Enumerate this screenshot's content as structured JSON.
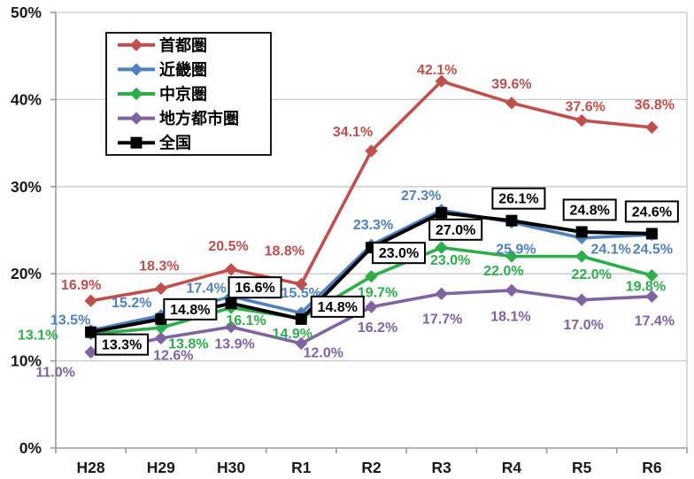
{
  "chart_data": {
    "type": "line",
    "x": [
      "H28",
      "H29",
      "H30",
      "R1",
      "R2",
      "R3",
      "R4",
      "R5",
      "R6"
    ],
    "ylim": [
      0,
      50
    ],
    "yticks": {
      "values": [
        0,
        10,
        20,
        30,
        40,
        50
      ],
      "labels": [
        "0%",
        "10%",
        "20%",
        "30%",
        "40%",
        "50%"
      ]
    },
    "grid": true,
    "legend_position": "top-left-inside",
    "colors": {
      "gridline": "#c9c9c9",
      "axis": "#9b9b9b",
      "legend_border": "#000000",
      "legend_bg": "#ffffff",
      "label_box_bg": "#ffffff",
      "label_box_border": "#000000"
    },
    "series": [
      {
        "name": "首都圏",
        "slug": "shutoken",
        "color": "#C0504D",
        "marker": "diamond",
        "boxed_labels": false,
        "values": [
          16.9,
          18.3,
          20.5,
          18.8,
          34.1,
          42.1,
          39.6,
          37.6,
          36.8
        ],
        "label_offsets": [
          [
            -11,
            -18
          ],
          [
            -2,
            -26
          ],
          [
            -3,
            -27
          ],
          [
            -19,
            -38
          ],
          [
            -21,
            -22
          ],
          [
            -5,
            -13
          ],
          [
            0,
            -22
          ],
          [
            4,
            -16
          ],
          [
            3,
            -26
          ]
        ]
      },
      {
        "name": "近畿圏",
        "slug": "kinkiken",
        "color": "#4F81BD",
        "marker": "diamond",
        "boxed_labels": false,
        "values": [
          13.5,
          15.2,
          17.4,
          15.5,
          23.3,
          27.3,
          25.9,
          24.1,
          24.5
        ],
        "label_offsets": [
          [
            -23,
            -12
          ],
          [
            -33,
            -15
          ],
          [
            -28,
            -10
          ],
          [
            0,
            -23
          ],
          [
            2,
            -23
          ],
          [
            -23,
            -17
          ],
          [
            5,
            30
          ],
          [
            33,
            12
          ],
          [
            1,
            16
          ]
        ]
      },
      {
        "name": "中京圏",
        "slug": "chukyoken",
        "color": "#2EAD4B",
        "marker": "diamond",
        "boxed_labels": false,
        "values": [
          13.1,
          13.8,
          16.1,
          14.9,
          19.7,
          23.0,
          22.0,
          22.0,
          19.8
        ],
        "label_offsets": [
          [
            -60,
            1
          ],
          [
            31,
            18
          ],
          [
            17,
            14
          ],
          [
            -10,
            17
          ],
          [
            7,
            18
          ],
          [
            10,
            14
          ],
          [
            -9,
            16
          ],
          [
            11,
            20
          ],
          [
            -7,
            12
          ]
        ]
      },
      {
        "name": "地方都市圏",
        "slug": "chiho-toshiken",
        "color": "#8064A2",
        "marker": "diamond",
        "boxed_labels": false,
        "values": [
          11.0,
          12.6,
          13.9,
          12.0,
          16.2,
          17.7,
          18.1,
          17.0,
          17.4
        ],
        "label_offsets": [
          [
            -40,
            22
          ],
          [
            14,
            19
          ],
          [
            4,
            19
          ],
          [
            25,
            10
          ],
          [
            7,
            23
          ],
          [
            1,
            28
          ],
          [
            -1,
            29
          ],
          [
            2,
            28
          ],
          [
            3,
            27
          ]
        ]
      },
      {
        "name": "全国",
        "slug": "zenkoku",
        "color": "#000000",
        "marker": "square",
        "boxed_labels": true,
        "values": [
          13.3,
          14.8,
          16.6,
          14.8,
          23.0,
          27.0,
          26.1,
          24.8,
          24.6
        ],
        "label_offsets": [
          [
            35,
            14
          ],
          [
            33,
            -11
          ],
          [
            27,
            -18
          ],
          [
            41,
            -14
          ],
          [
            31,
            6
          ],
          [
            16,
            19
          ],
          [
            8,
            -25
          ],
          [
            9,
            -25
          ],
          [
            0,
            -25
          ]
        ]
      }
    ]
  }
}
